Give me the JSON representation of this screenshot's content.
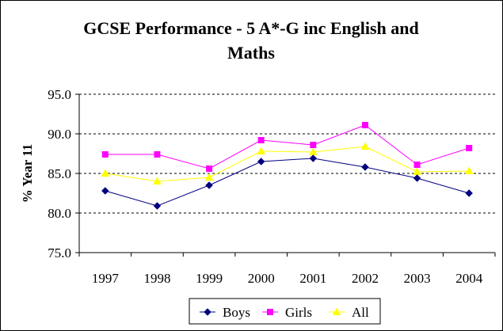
{
  "chart_data": {
    "type": "line",
    "title_lines": [
      "GCSE Performance - 5 A*-G inc English and",
      "Maths"
    ],
    "xlabel": "",
    "ylabel": "% Year 11",
    "categories": [
      "1997",
      "1998",
      "1999",
      "2000",
      "2001",
      "2002",
      "2003",
      "2004"
    ],
    "ylim": [
      75.0,
      95.0
    ],
    "yticks": [
      "75.0",
      "80.0",
      "85.0",
      "90.0",
      "95.0"
    ],
    "grid": true,
    "legend_position": "bottom",
    "series": [
      {
        "name": "Boys",
        "color": "#000080",
        "marker": "diamond",
        "values": [
          82.8,
          80.9,
          83.5,
          86.5,
          86.9,
          85.8,
          84.4,
          82.5
        ]
      },
      {
        "name": "Girls",
        "color": "#ff00ff",
        "marker": "square",
        "values": [
          87.4,
          87.4,
          85.6,
          89.2,
          88.6,
          91.1,
          86.1,
          88.2
        ]
      },
      {
        "name": "All",
        "color": "#ffff00",
        "marker": "triangle",
        "values": [
          85.0,
          84.0,
          84.5,
          87.8,
          87.7,
          88.4,
          85.2,
          85.3
        ]
      }
    ]
  }
}
